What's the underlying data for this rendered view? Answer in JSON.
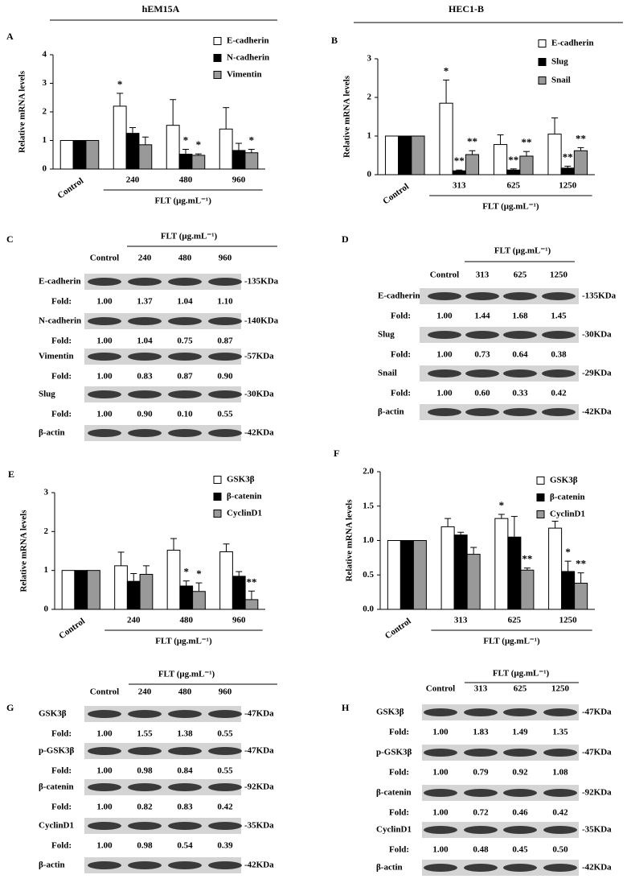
{
  "chart_data": [
    {
      "type": "bar",
      "label": "A",
      "group_title": "hEM15A",
      "ylabel": "Relative mRNA levels",
      "xlabel": "FLT (μg.mL⁻¹)",
      "categories": [
        "Control",
        "240",
        "480",
        "960"
      ],
      "ylim": [
        0,
        4
      ],
      "yticks": [
        0,
        1,
        2,
        3,
        4
      ],
      "series": [
        {
          "name": "E-cadherin",
          "color": "#ffffff",
          "values": [
            1,
            2.2,
            1.53,
            1.4
          ],
          "errors": [
            0,
            0.45,
            0.9,
            0.75
          ],
          "annotations": [
            null,
            "*",
            null,
            null
          ]
        },
        {
          "name": "N-cadherin",
          "color": "#000000",
          "values": [
            1,
            1.25,
            0.52,
            0.65
          ],
          "errors": [
            0,
            0.2,
            0.17,
            0.25
          ],
          "annotations": [
            null,
            null,
            "*",
            null
          ]
        },
        {
          "name": "Vimentin",
          "color": "#999999",
          "values": [
            1,
            0.85,
            0.48,
            0.57
          ],
          "errors": [
            0,
            0.27,
            0.05,
            0.12
          ],
          "annotations": [
            null,
            null,
            "*",
            "*"
          ]
        }
      ]
    },
    {
      "type": "bar",
      "label": "B",
      "group_title": "HEC1-B",
      "ylabel": "Relative mRNA levels",
      "xlabel": "FLT (μg.mL⁻¹)",
      "categories": [
        "Control",
        "313",
        "625",
        "1250"
      ],
      "ylim": [
        0,
        3
      ],
      "yticks": [
        0,
        1,
        2,
        3
      ],
      "series": [
        {
          "name": "E-cadherin",
          "color": "#ffffff",
          "values": [
            1,
            1.85,
            0.78,
            1.05
          ],
          "errors": [
            0,
            0.6,
            0.25,
            0.42
          ],
          "annotations": [
            null,
            "*",
            null,
            null
          ]
        },
        {
          "name": "Slug",
          "color": "#000000",
          "values": [
            1,
            0.1,
            0.12,
            0.17
          ],
          "errors": [
            0,
            0.02,
            0.03,
            0.05
          ],
          "annotations": [
            null,
            "**",
            "**",
            "**"
          ]
        },
        {
          "name": "Snail",
          "color": "#999999",
          "values": [
            1,
            0.52,
            0.48,
            0.62
          ],
          "errors": [
            0,
            0.1,
            0.12,
            0.08
          ],
          "annotations": [
            null,
            "**",
            "**",
            "**"
          ]
        }
      ]
    },
    {
      "type": "bar",
      "label": "E",
      "ylabel": "Relative mRNA levels",
      "xlabel": "FLT (μg.mL⁻¹)",
      "categories": [
        "Control",
        "240",
        "480",
        "960"
      ],
      "ylim": [
        0,
        3
      ],
      "yticks": [
        0,
        1,
        2,
        3
      ],
      "series": [
        {
          "name": "GSK3β",
          "color": "#ffffff",
          "values": [
            1,
            1.12,
            1.52,
            1.48
          ],
          "errors": [
            0,
            0.35,
            0.3,
            0.2
          ],
          "annotations": [
            null,
            null,
            null,
            null
          ]
        },
        {
          "name": "β-catenin",
          "color": "#000000",
          "values": [
            1,
            0.72,
            0.6,
            0.85
          ],
          "errors": [
            0,
            0.2,
            0.13,
            0.12
          ],
          "annotations": [
            null,
            null,
            "*",
            null
          ]
        },
        {
          "name": "CyclinD1",
          "color": "#999999",
          "values": [
            1,
            0.9,
            0.46,
            0.25
          ],
          "errors": [
            0,
            0.22,
            0.22,
            0.22
          ],
          "annotations": [
            null,
            null,
            "*",
            "**"
          ]
        }
      ]
    },
    {
      "type": "bar",
      "label": "F",
      "ylabel": "Relative mRNA levels",
      "xlabel": "FLT (μg.mL⁻¹)",
      "categories": [
        "Control",
        "313",
        "625",
        "1250"
      ],
      "ylim": [
        0,
        2
      ],
      "yticks": [
        {
          "value": 0,
          "label": "0.0"
        },
        0.5,
        {
          "value": 1,
          "label": "1.0"
        },
        1.5,
        {
          "value": 2,
          "label": "2.0"
        }
      ],
      "series": [
        {
          "name": "GSK3β",
          "color": "#ffffff",
          "values": [
            1,
            1.2,
            1.32,
            1.18
          ],
          "errors": [
            0,
            0.12,
            0.06,
            0.1
          ],
          "annotations": [
            null,
            null,
            "*",
            null
          ]
        },
        {
          "name": "β-catenin",
          "color": "#000000",
          "values": [
            1,
            1.08,
            1.05,
            0.55
          ],
          "errors": [
            0,
            0.04,
            0.3,
            0.15
          ],
          "annotations": [
            null,
            null,
            null,
            "*"
          ]
        },
        {
          "name": "CyclinD1",
          "color": "#999999",
          "values": [
            1,
            0.8,
            0.57,
            0.38
          ],
          "errors": [
            0,
            0.1,
            0.03,
            0.15
          ],
          "annotations": [
            null,
            null,
            "**",
            "**"
          ]
        }
      ]
    }
  ],
  "blots": [
    {
      "label": "C",
      "header": "FLT (μg.mL⁻¹)",
      "lanes": [
        "Control",
        "240",
        "480",
        "960"
      ],
      "fold_label": "Fold:",
      "rows": [
        {
          "name": "E-cadherin",
          "size": "-135KDa",
          "fold": [
            "1.00",
            "1.37",
            "1.04",
            "1.10"
          ]
        },
        {
          "name": "N-cadherin",
          "size": "-140KDa",
          "fold": [
            "1.00",
            "1.04",
            "0.75",
            "0.87"
          ]
        },
        {
          "name": "Vimentin",
          "size": "-57KDa",
          "fold": [
            "1.00",
            "0.83",
            "0.87",
            "0.90"
          ]
        },
        {
          "name": "Slug",
          "size": "-30KDa",
          "fold": [
            "1.00",
            "0.90",
            "0.10",
            "0.55"
          ]
        },
        {
          "name": "β-actin",
          "size": "-42KDa"
        }
      ]
    },
    {
      "label": "D",
      "header": "FLT (μg.mL⁻¹)",
      "lanes": [
        "Control",
        "313",
        "625",
        "1250"
      ],
      "fold_label": "Fold:",
      "rows": [
        {
          "name": "E-cadherin",
          "size": "-135KDa",
          "fold": [
            "1.00",
            "1.44",
            "1.68",
            "1.45"
          ]
        },
        {
          "name": "Slug",
          "size": "-30KDa",
          "fold": [
            "1.00",
            "0.73",
            "0.64",
            "0.38"
          ]
        },
        {
          "name": "Snail",
          "size": "-29KDa",
          "fold": [
            "1.00",
            "0.60",
            "0.33",
            "0.42"
          ]
        },
        {
          "name": "β-actin",
          "size": "-42KDa"
        }
      ]
    },
    {
      "label": "G",
      "header": "FLT (μg.mL⁻¹)",
      "lanes": [
        "Control",
        "240",
        "480",
        "960"
      ],
      "fold_label": "Fold:",
      "rows": [
        {
          "name": "GSK3β",
          "size": "-47KDa",
          "fold": [
            "1.00",
            "1.55",
            "1.38",
            "0.55"
          ]
        },
        {
          "name": "p-GSK3β",
          "size": "-47KDa",
          "fold": [
            "1.00",
            "0.98",
            "0.84",
            "0.55"
          ]
        },
        {
          "name": "β-catenin",
          "size": "-92KDa",
          "fold": [
            "1.00",
            "0.82",
            "0.83",
            "0.42"
          ]
        },
        {
          "name": "CyclinD1",
          "size": "-35KDa",
          "fold": [
            "1.00",
            "0.98",
            "0.54",
            "0.39"
          ]
        },
        {
          "name": "β-actin",
          "size": "-42KDa"
        }
      ]
    },
    {
      "label": "H",
      "header": "FLT (μg.mL⁻¹)",
      "lanes": [
        "Control",
        "313",
        "625",
        "1250"
      ],
      "fold_label": "Fold:",
      "rows": [
        {
          "name": "GSK3β",
          "size": "-47KDa",
          "fold": [
            "1.00",
            "1.83",
            "1.49",
            "1.35"
          ]
        },
        {
          "name": "p-GSK3β",
          "size": "-47KDa",
          "fold": [
            "1.00",
            "0.79",
            "0.92",
            "1.08"
          ]
        },
        {
          "name": "β-catenin",
          "size": "-92KDa",
          "fold": [
            "1.00",
            "0.72",
            "0.46",
            "0.42"
          ]
        },
        {
          "name": "CyclinD1",
          "size": "-35KDa",
          "fold": [
            "1.00",
            "0.48",
            "0.45",
            "0.50"
          ]
        },
        {
          "name": "β-actin",
          "size": "-42KDa"
        }
      ]
    }
  ]
}
